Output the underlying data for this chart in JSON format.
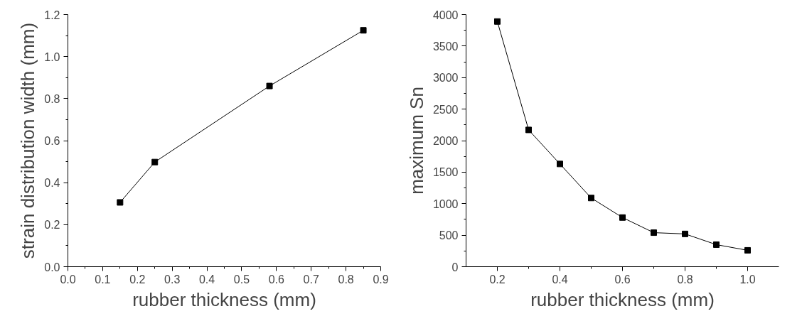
{
  "chart_data": [
    {
      "type": "line",
      "xlabel": "rubber thickness (mm)",
      "ylabel": "strain distribution width (mm)",
      "x": [
        0.15,
        0.25,
        0.58,
        0.85
      ],
      "series": [
        {
          "color": "#000000",
          "values": [
            0.306,
            0.498,
            0.86,
            1.125
          ]
        }
      ],
      "xlim": [
        0,
        0.9
      ],
      "ylim": [
        0,
        1.2
      ],
      "xticks": [
        "0.0",
        0.1,
        0.2,
        0.3,
        0.4,
        0.5,
        0.6,
        0.7,
        0.8,
        0.9
      ],
      "yticks": [
        {
          "value": 0,
          "label": "0.0"
        },
        0.2,
        0.4,
        0.6,
        0.8,
        {
          "value": 1,
          "label": "1.0"
        },
        1.2
      ],
      "marker": "square",
      "line_style": "solid"
    },
    {
      "type": "line",
      "xlabel": "rubber thickness (mm)",
      "ylabel": "maximum Sn",
      "x": [
        0.2,
        0.3,
        0.4,
        0.5,
        0.6,
        0.7,
        0.8,
        0.9,
        1.0
      ],
      "series": [
        {
          "color": "#000000",
          "values": [
            3890,
            2170,
            1630,
            1090,
            780,
            540,
            520,
            350,
            260
          ]
        }
      ],
      "xlim": [
        0.1,
        1.1
      ],
      "ylim": [
        0,
        4000
      ],
      "xticks": [
        0.2,
        0.4,
        0.6,
        0.8,
        {
          "value": 1,
          "label": "1.0"
        }
      ],
      "yticks": [
        0,
        500,
        1000,
        1500,
        2000,
        2500,
        3000,
        3500,
        4000
      ],
      "marker": "square",
      "line_style": "solid"
    }
  ]
}
